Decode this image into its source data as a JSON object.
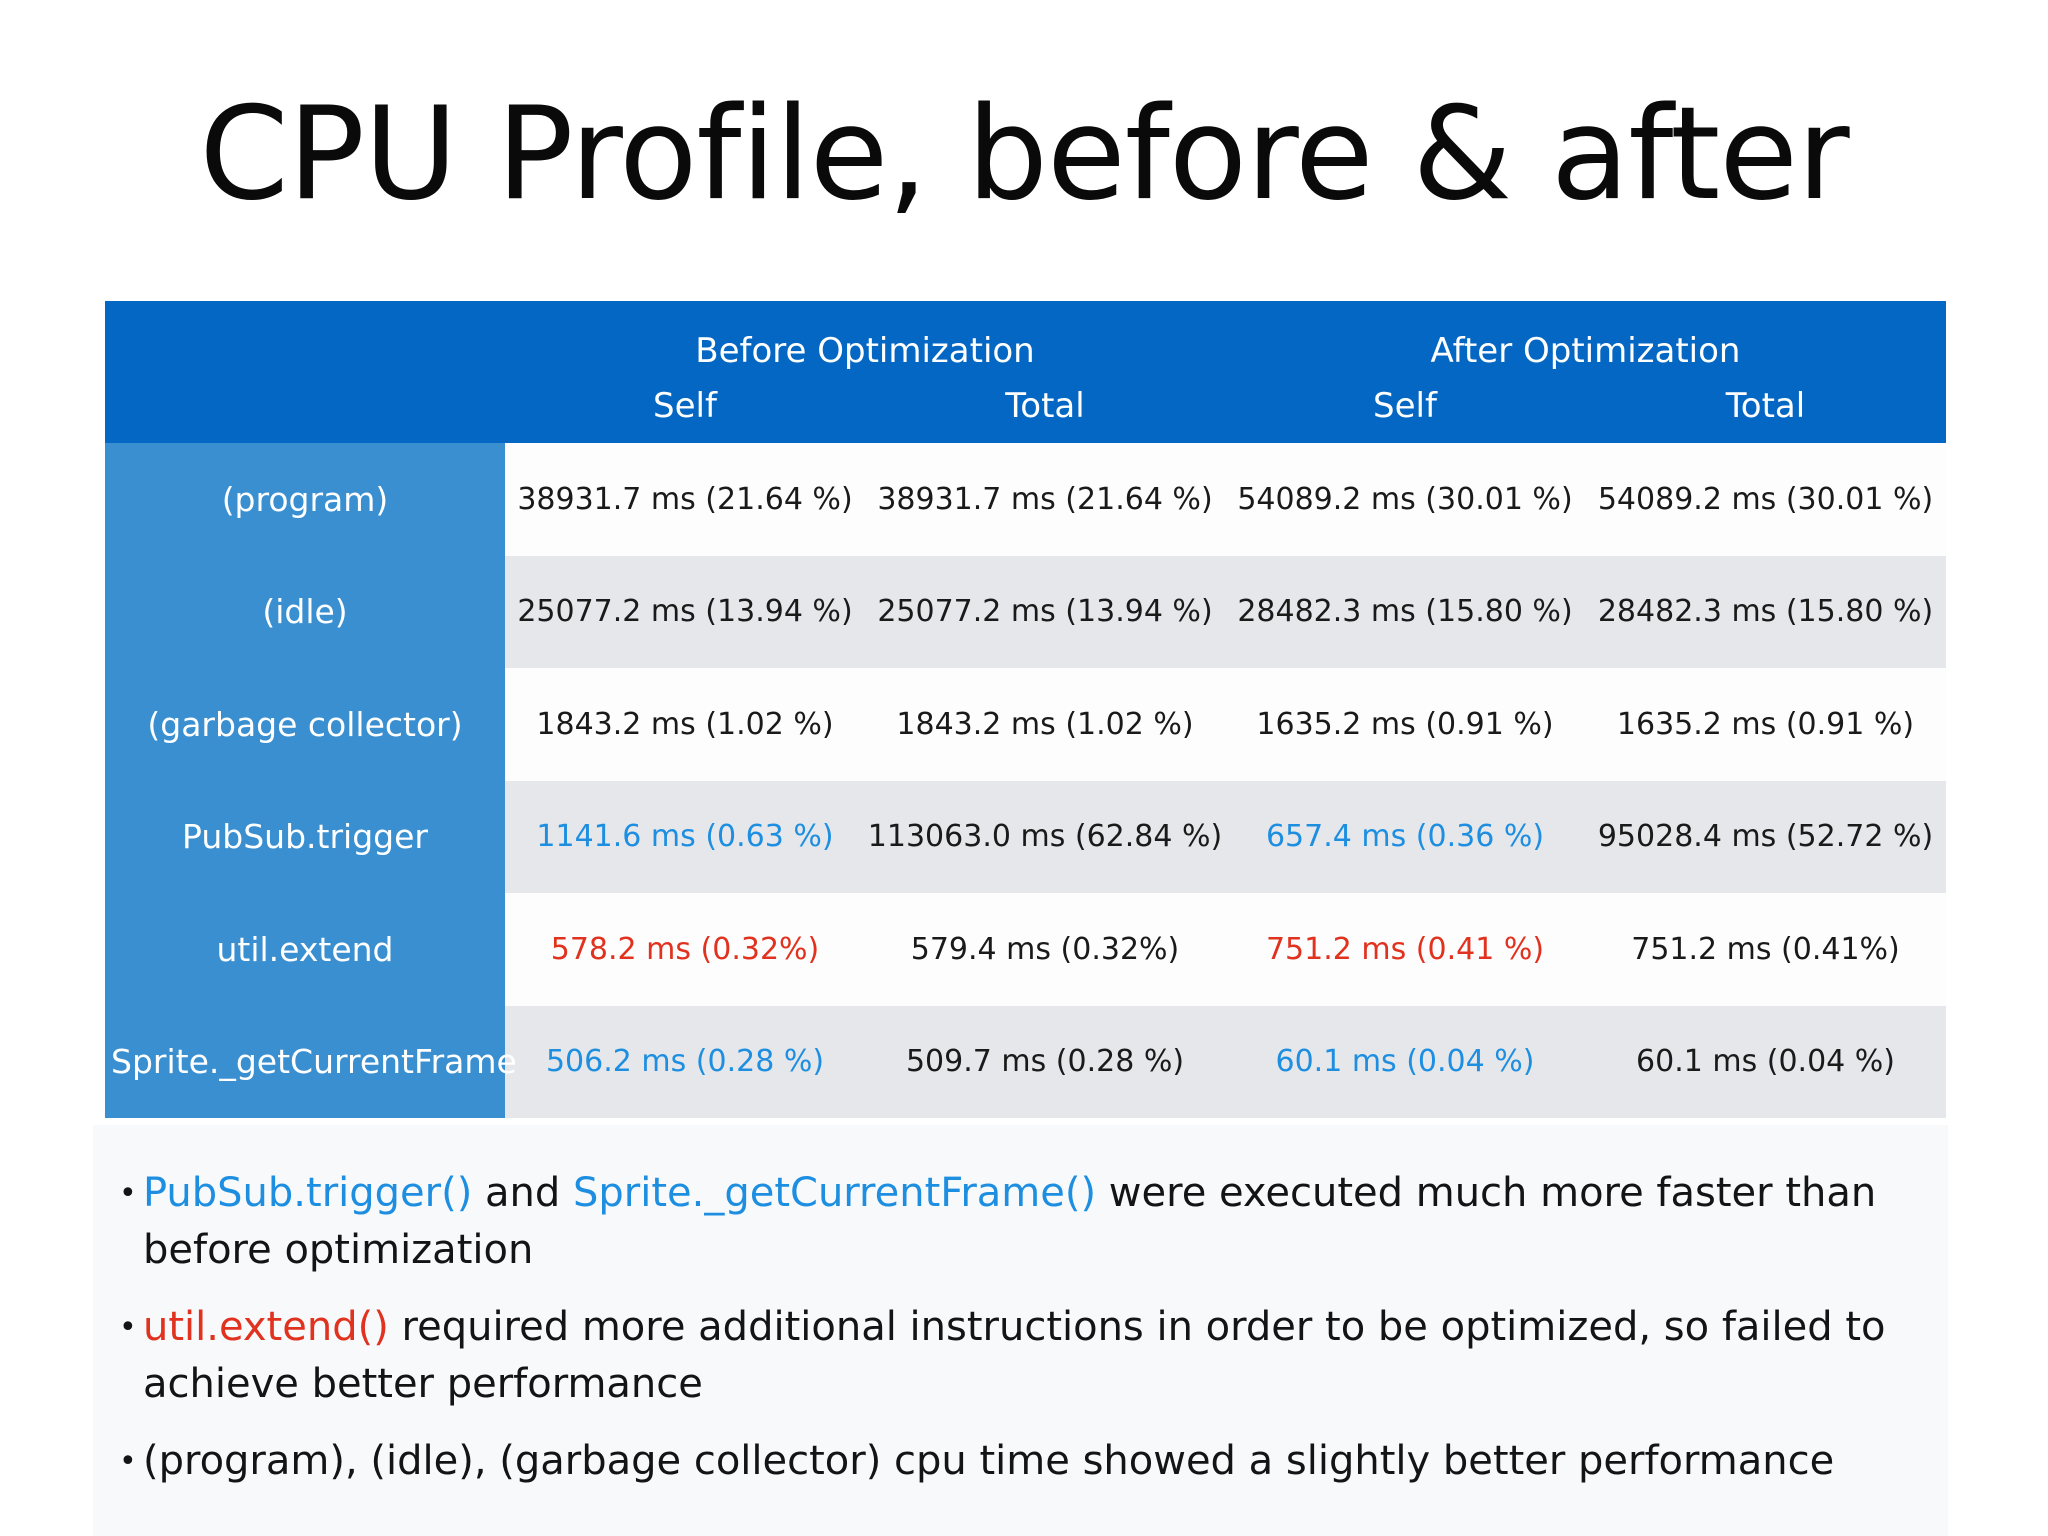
{
  "title": "CPU Profile, before & after",
  "table": {
    "groups": {
      "before": "Before Optimization",
      "after": "After Optimization"
    },
    "subheaders": {
      "before_self": "Self",
      "before_total": "Total",
      "after_self": "Self",
      "after_total": "Total"
    },
    "rows": [
      {
        "label": "(program)",
        "before_self": "38931.7 ms (21.64 %)",
        "before_total": "38931.7 ms (21.64 %)",
        "after_self": "54089.2 ms (30.01 %)",
        "after_total": "54089.2 ms (30.01 %)"
      },
      {
        "label": "(idle)",
        "before_self": "25077.2 ms (13.94 %)",
        "before_total": "25077.2 ms (13.94 %)",
        "after_self": "28482.3 ms (15.80 %)",
        "after_total": "28482.3 ms (15.80 %)"
      },
      {
        "label": "(garbage collector)",
        "before_self": "1843.2 ms (1.02 %)",
        "before_total": "1843.2 ms (1.02 %)",
        "after_self": "1635.2 ms (0.91 %)",
        "after_total": "1635.2 ms (0.91 %)"
      },
      {
        "label": "PubSub.trigger",
        "before_self": "1141.6 ms (0.63 %)",
        "before_total": "113063.0 ms (62.84 %)",
        "after_self": "657.4 ms (0.36 %)",
        "after_total": "95028.4 ms (52.72 %)"
      },
      {
        "label": "util.extend",
        "before_self": "578.2 ms (0.32%)",
        "before_total": "579.4 ms (0.32%)",
        "after_self": "751.2 ms (0.41 %)",
        "after_total": "751.2 ms (0.41%)"
      },
      {
        "label": "Sprite._getCurrentFrame",
        "before_self": "506.2 ms (0.28 %)",
        "before_total": "509.7 ms (0.28 %)",
        "after_self": "60.1 ms (0.04 %)",
        "after_total": "60.1 ms (0.04 %)"
      }
    ]
  },
  "notes": {
    "bullet": "•",
    "n1": {
      "kw1": "PubSub.trigger()",
      "t1": " and ",
      "kw2": "Sprite._getCurrentFrame()",
      "t2": " were executed much more faster than before optimization"
    },
    "n2": {
      "kw1": "util.extend()",
      "t1": " required more additional instructions in order to be optimized, so failed to achieve better performance"
    },
    "n3": {
      "t1": "(program), (idle), (garbage collector) cpu time showed a slightly better performance"
    }
  },
  "colors": {
    "header_blue": "#0567c4",
    "label_blue": "#3a8fd1",
    "highlight_blue": "#1e8fe0",
    "highlight_red": "#e0321e",
    "row_alt": "#e6e7eb"
  }
}
